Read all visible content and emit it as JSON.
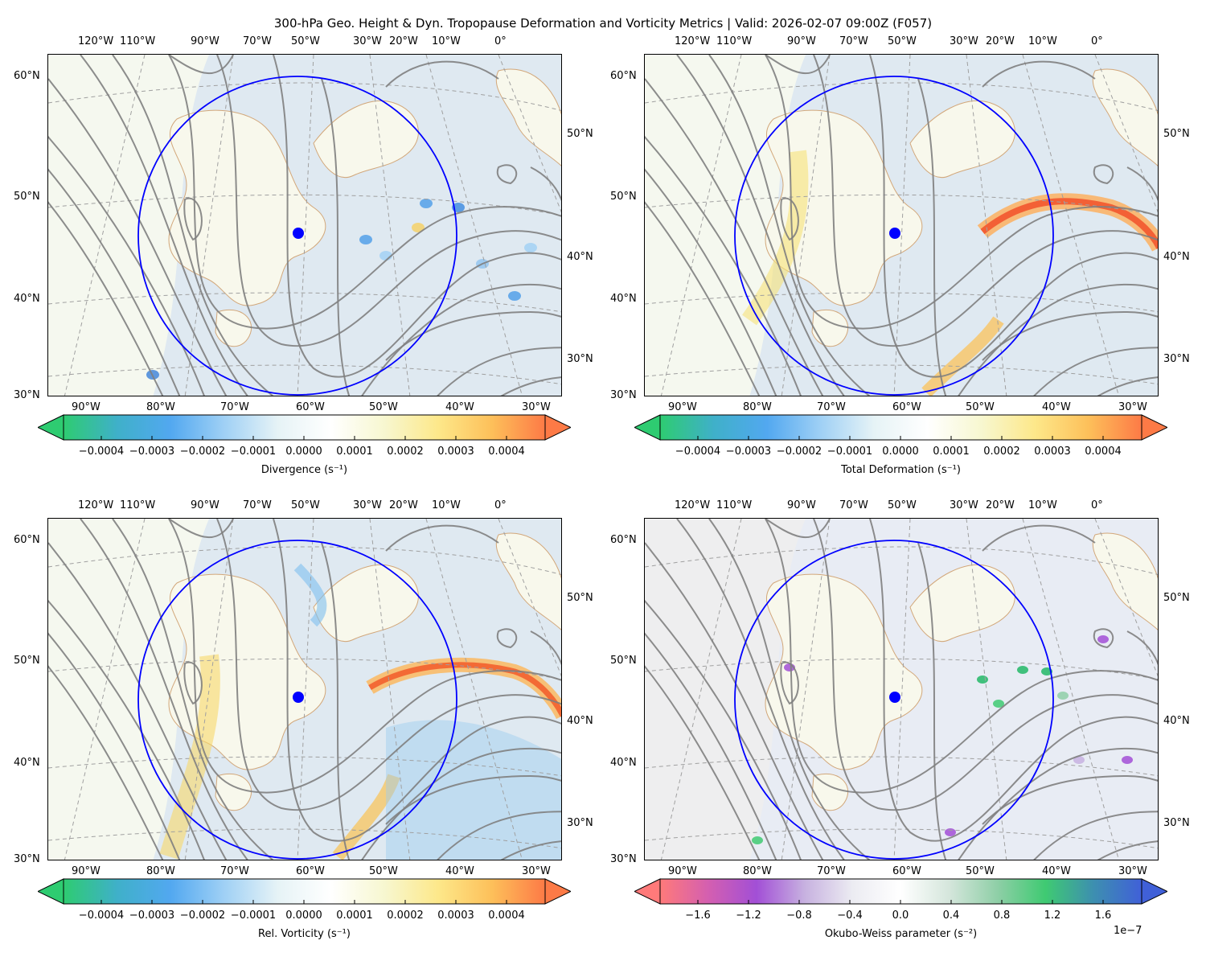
{
  "figure_title": "300-hPa Geo. Height & Dyn. Tropopause Deformation and Vorticity Metrics |  Valid: 2026-02-07 09:00Z (F057)",
  "top_lon_labels": [
    "120°W",
    "110°W",
    "90°W",
    "70°W",
    "50°W",
    "30°W",
    "20°W",
    "10°W",
    "0°"
  ],
  "bottom_lon_labels": [
    "90°W",
    "80°W",
    "70°W",
    "60°W",
    "50°W",
    "40°W",
    "30°W"
  ],
  "left_lat_labels": [
    "60°N",
    "50°N",
    "40°N",
    "30°N"
  ],
  "right_lat_labels": [
    "50°N",
    "40°N",
    "30°N"
  ],
  "panels": [
    {
      "id": "divergence",
      "colorbar_label": "Divergence (s⁻¹)",
      "colorbar_ticks": [
        "−0.0004",
        "−0.0003",
        "−0.0002",
        "−0.0001",
        "0.0000",
        "0.0001",
        "0.0002",
        "0.0003",
        "0.0004"
      ],
      "colormap": [
        "#2ecc71",
        "#3fb0c9",
        "#52a8f0",
        "#9fd0f5",
        "#e6f3f6",
        "#ffffff",
        "#f7f7d0",
        "#fde88a",
        "#fdc05a",
        "#fd7a46"
      ],
      "sci_note": ""
    },
    {
      "id": "deformation",
      "colorbar_label": "Total Deformation (s⁻¹)",
      "colorbar_ticks": [
        "−0.0004",
        "−0.0003",
        "−0.0002",
        "−0.0001",
        "0.0000",
        "0.0001",
        "0.0002",
        "0.0003",
        "0.0004"
      ],
      "colormap": [
        "#2ecc71",
        "#3fb0c9",
        "#52a8f0",
        "#9fd0f5",
        "#e6f3f6",
        "#ffffff",
        "#f7f7d0",
        "#fde88a",
        "#fdc05a",
        "#fd7a46"
      ],
      "sci_note": ""
    },
    {
      "id": "vorticity",
      "colorbar_label": "Rel. Vorticity (s⁻¹)",
      "colorbar_ticks": [
        "−0.0004",
        "−0.0003",
        "−0.0002",
        "−0.0001",
        "0.0000",
        "0.0001",
        "0.0002",
        "0.0003",
        "0.0004"
      ],
      "colormap": [
        "#2ecc71",
        "#3fb0c9",
        "#52a8f0",
        "#9fd0f5",
        "#e6f3f6",
        "#ffffff",
        "#f7f7d0",
        "#fde88a",
        "#fdc05a",
        "#fd7a46"
      ],
      "sci_note": ""
    },
    {
      "id": "okubo-weiss",
      "colorbar_label": "Okubo-Weiss parameter (s⁻²)",
      "colorbar_ticks": [
        "−1.6",
        "−1.2",
        "−0.8",
        "−0.4",
        "0.0",
        "0.4",
        "0.8",
        "1.2",
        "1.6"
      ],
      "colormap": [
        "#ff7a7a",
        "#d45fb0",
        "#a24fd6",
        "#c7b1e0",
        "#ececf2",
        "#ffffff",
        "#d5e6dc",
        "#8fcfa7",
        "#3fca72",
        "#3d8fb0",
        "#4060d8"
      ],
      "sci_note": "1e−7"
    }
  ],
  "colors": {
    "height_contour": "#7f7f7f",
    "coast": "#d2a77a",
    "circle": "#0000ff",
    "grid": "#a0a0a0"
  }
}
